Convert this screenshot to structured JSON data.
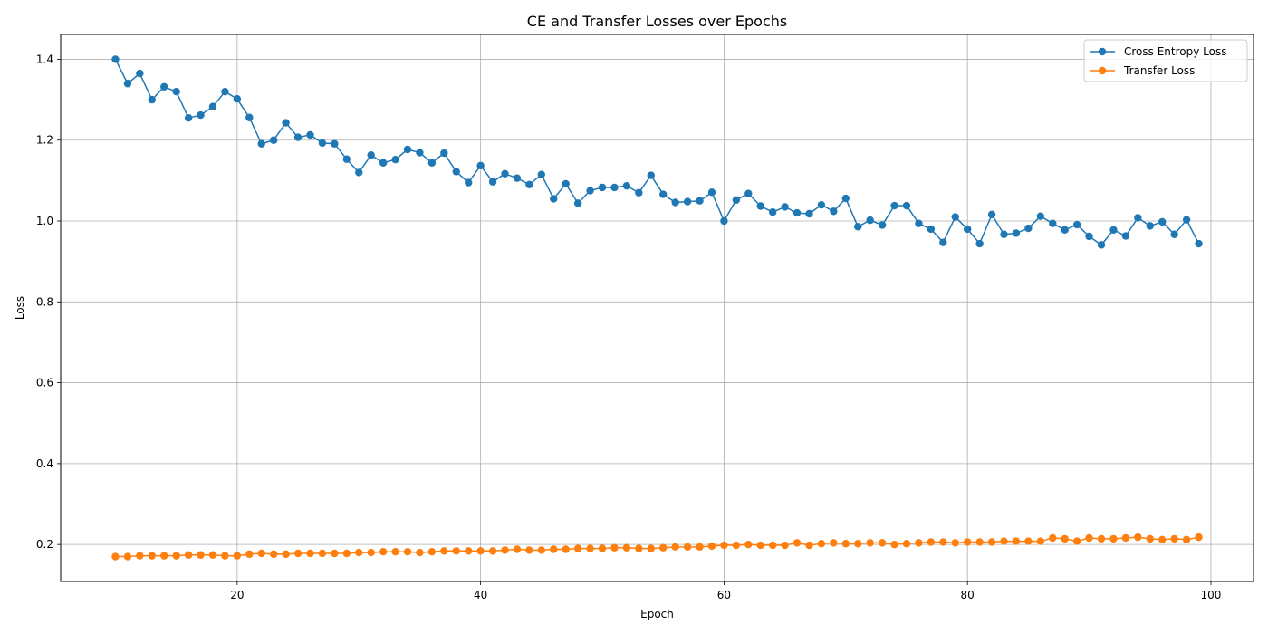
{
  "chart_data": {
    "type": "line",
    "title": "CE and Transfer Losses over Epochs",
    "xlabel": "Epoch",
    "ylabel": "Loss",
    "xlim": [
      5.5,
      103.5
    ],
    "ylim": [
      0.1085,
      1.4615
    ],
    "xticks": [
      20,
      40,
      60,
      80,
      100
    ],
    "yticks": [
      0.2,
      0.4,
      0.6,
      0.8,
      1.0,
      1.2,
      1.4
    ],
    "grid": true,
    "legend_position": "top-right",
    "x": [
      10,
      11,
      12,
      13,
      14,
      15,
      16,
      17,
      18,
      19,
      20,
      21,
      22,
      23,
      24,
      25,
      26,
      27,
      28,
      29,
      30,
      31,
      32,
      33,
      34,
      35,
      36,
      37,
      38,
      39,
      40,
      41,
      42,
      43,
      44,
      45,
      46,
      47,
      48,
      49,
      50,
      51,
      52,
      53,
      54,
      55,
      56,
      57,
      58,
      59,
      60,
      61,
      62,
      63,
      64,
      65,
      66,
      67,
      68,
      69,
      70,
      71,
      72,
      73,
      74,
      75,
      76,
      77,
      78,
      79,
      80,
      81,
      82,
      83,
      84,
      85,
      86,
      87,
      88,
      89,
      90,
      91,
      92,
      93,
      94,
      95,
      96,
      97,
      98,
      99
    ],
    "series": [
      {
        "name": "Cross Entropy Loss",
        "color": "#1f77b4",
        "values": [
          1.4,
          1.34,
          1.365,
          1.3,
          1.332,
          1.32,
          1.255,
          1.262,
          1.283,
          1.32,
          1.302,
          1.256,
          1.191,
          1.2,
          1.243,
          1.207,
          1.213,
          1.193,
          1.191,
          1.153,
          1.12,
          1.163,
          1.144,
          1.152,
          1.177,
          1.169,
          1.144,
          1.168,
          1.122,
          1.095,
          1.137,
          1.097,
          1.117,
          1.106,
          1.09,
          1.115,
          1.055,
          1.092,
          1.044,
          1.075,
          1.083,
          1.083,
          1.087,
          1.07,
          1.113,
          1.066,
          1.046,
          1.048,
          1.05,
          1.071,
          1.0,
          1.052,
          1.068,
          1.037,
          1.022,
          1.035,
          1.02,
          1.018,
          1.04,
          1.024,
          1.056,
          0.986,
          1.002,
          0.99,
          1.038,
          1.038,
          0.994,
          0.98,
          0.947,
          1.01,
          0.98,
          0.944,
          1.016,
          0.967,
          0.97,
          0.982,
          1.012,
          0.994,
          0.978,
          0.991,
          0.962,
          0.941,
          0.978,
          0.963,
          1.008,
          0.988,
          0.998,
          0.967,
          1.003,
          0.944
        ]
      },
      {
        "name": "Transfer Loss",
        "color": "#ff7f0e",
        "values": [
          0.17,
          0.17,
          0.172,
          0.172,
          0.172,
          0.172,
          0.174,
          0.174,
          0.174,
          0.172,
          0.172,
          0.176,
          0.178,
          0.176,
          0.176,
          0.178,
          0.178,
          0.178,
          0.178,
          0.178,
          0.18,
          0.18,
          0.182,
          0.182,
          0.182,
          0.18,
          0.182,
          0.184,
          0.184,
          0.184,
          0.184,
          0.184,
          0.186,
          0.188,
          0.186,
          0.186,
          0.188,
          0.188,
          0.19,
          0.19,
          0.19,
          0.192,
          0.192,
          0.19,
          0.19,
          0.192,
          0.194,
          0.194,
          0.194,
          0.196,
          0.198,
          0.198,
          0.2,
          0.198,
          0.198,
          0.198,
          0.204,
          0.198,
          0.202,
          0.204,
          0.202,
          0.202,
          0.204,
          0.204,
          0.2,
          0.202,
          0.204,
          0.206,
          0.206,
          0.204,
          0.206,
          0.206,
          0.206,
          0.208,
          0.208,
          0.208,
          0.208,
          0.216,
          0.214,
          0.208,
          0.216,
          0.214,
          0.214,
          0.216,
          0.218,
          0.214,
          0.212,
          0.214,
          0.212,
          0.218
        ]
      }
    ]
  }
}
